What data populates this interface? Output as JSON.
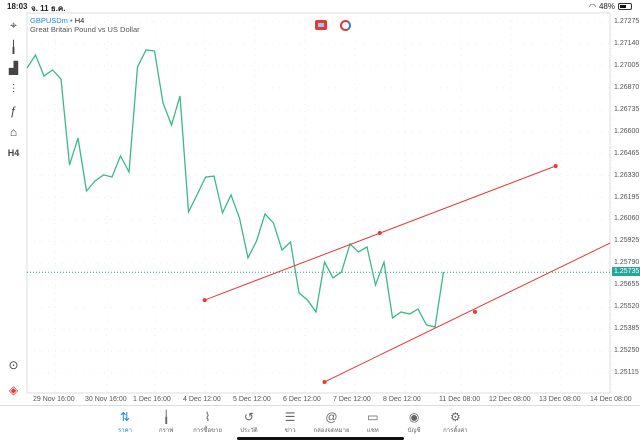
{
  "status": {
    "time": "18:03",
    "date": "จ. 11 ธ.ค.",
    "battery": "48%",
    "battery_level": 0.48
  },
  "header": {
    "symbol": "GBPUSDm",
    "separator": "•",
    "timeframe": "H4",
    "description": "Great Britain Pound vs US Dollar"
  },
  "toolbar": [
    {
      "icon": "crosshair-icon",
      "glyph": "⌖"
    },
    {
      "icon": "candlestick-icon",
      "glyph": "╽"
    },
    {
      "icon": "indicators-icon",
      "glyph": "▟"
    },
    {
      "icon": "settings-sliders-icon",
      "glyph": "⫶"
    },
    {
      "icon": "function-icon",
      "glyph": "ƒ"
    },
    {
      "icon": "objects-icon",
      "glyph": "⌂"
    },
    {
      "icon": "timeframe-icon",
      "glyph": "H4"
    }
  ],
  "toolbar_bottom": [
    {
      "icon": "zoom-chart-icon",
      "glyph": "⊙"
    },
    {
      "icon": "trade-app-icon",
      "glyph": "◈"
    }
  ],
  "colors": {
    "line": "#3cb987",
    "trendline": "#e53935",
    "current": "#26a69a",
    "accent": "#1e88e5"
  },
  "chart_data": {
    "type": "line",
    "ylim": [
      1.2505,
      1.2732
    ],
    "y_ticks": [
      "1.27275",
      "1.27140",
      "1.27005",
      "1.26870",
      "1.26735",
      "1.26600",
      "1.26465",
      "1.26330",
      "1.26195",
      "1.26060",
      "1.25925",
      "1.25790",
      "1.25655",
      "1.25520",
      "1.25385",
      "1.25250",
      "1.25115"
    ],
    "x_ticks": [
      "29 Nov 16:00",
      "30 Nov 16:00",
      "1 Dec 16:00",
      "4 Dec 12:00",
      "5 Dec 12:00",
      "6 Dec 12:00",
      "7 Dec 12:00",
      "8 Dec 12:00",
      "11 Dec 08:00",
      "12 Dec 08:00",
      "13 Dec 08:00",
      "14 Dec 08:00"
    ],
    "values": [
      1.26992,
      1.27072,
      1.26943,
      1.2698,
      1.26924,
      1.26395,
      1.26561,
      1.26235,
      1.26297,
      1.26334,
      1.26321,
      1.26451,
      1.26352,
      1.26998,
      1.27103,
      1.27097,
      1.26777,
      1.26641,
      1.2682,
      1.26106,
      1.26211,
      1.26321,
      1.26327,
      1.261,
      1.26211,
      1.26069,
      1.25823,
      1.25927,
      1.26094,
      1.26038,
      1.25872,
      1.25921,
      1.25608,
      1.25564,
      1.25491,
      1.25798,
      1.257,
      1.25737,
      1.25909,
      1.2586,
      1.25891,
      1.25657,
      1.25798,
      1.25454,
      1.25491,
      1.25478,
      1.25509,
      1.25411,
      1.25398,
      1.25737
    ],
    "current_price": "1.25735",
    "trendlines": [
      {
        "points": [
          [
            20.9,
            1.25564
          ],
          [
            41.5,
            1.25977
          ],
          [
            62.2,
            1.26389
          ]
        ],
        "extend": false
      },
      {
        "points": [
          [
            35,
            1.2506
          ],
          [
            52.7,
            1.25491
          ]
        ],
        "extend_to": [
          68.6,
          1.25915
        ]
      }
    ],
    "grid": true
  },
  "nav": [
    {
      "label": "ราคา",
      "icon": "quotes-icon",
      "glyph": "⇅",
      "active": true
    },
    {
      "label": "กราฟ",
      "icon": "chart-icon",
      "glyph": "╽"
    },
    {
      "label": "การซื้อขาย",
      "icon": "trade-icon",
      "glyph": "⌇"
    },
    {
      "label": "ประวัติ",
      "icon": "history-icon",
      "glyph": "↺"
    },
    {
      "label": "ข่าว",
      "icon": "news-icon",
      "glyph": "☰"
    },
    {
      "label": "กล่องจดหมาย",
      "icon": "mailbox-icon",
      "glyph": "@"
    },
    {
      "label": "แชท",
      "icon": "chat-icon",
      "glyph": "▭"
    },
    {
      "label": "บัญชี",
      "icon": "account-icon",
      "glyph": "◉"
    },
    {
      "label": "การตั้งค่า",
      "icon": "settings-icon",
      "glyph": "⚙"
    }
  ]
}
